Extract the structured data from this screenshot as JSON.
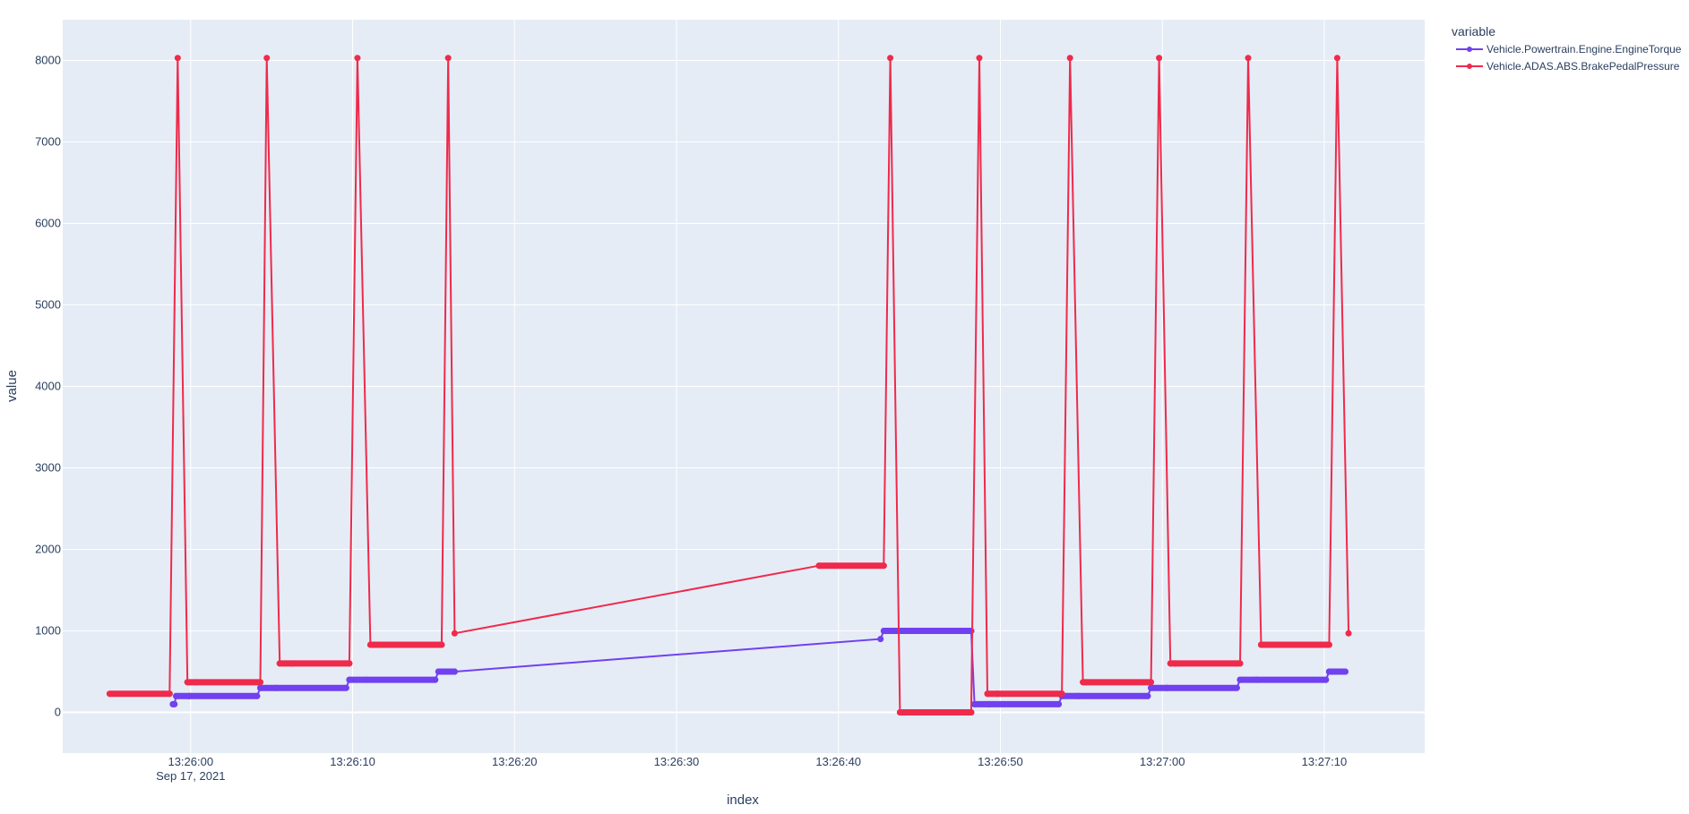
{
  "chart_data": {
    "type": "line",
    "xlabel": "index",
    "ylabel": "value",
    "x_start": "13:25:55",
    "xlim": [
      "13:25:52.1",
      "13:27:16.2"
    ],
    "ylim": [
      -500,
      8500
    ],
    "grid": true,
    "x_ticks": [
      "13:26:00",
      "13:26:10",
      "13:26:20",
      "13:26:30",
      "13:26:40",
      "13:26:50",
      "13:27:00",
      "13:27:10"
    ],
    "x_tick_date": "Sep 17, 2021",
    "y_ticks": [
      "0",
      "1000",
      "2000",
      "3000",
      "4000",
      "5000",
      "6000",
      "7000",
      "8000"
    ],
    "y_tick_values": [
      0,
      1000,
      2000,
      3000,
      4000,
      5000,
      6000,
      7000,
      8000
    ],
    "legend": {
      "title": "variable",
      "position": "top-right"
    },
    "series": [
      {
        "name": "Vehicle.Powertrain.Engine.EngineTorque",
        "color": "#7140f0",
        "x": [
          "13:25:58.9",
          "13:25:59.0",
          "13:25:59.1",
          "13:25:59.9",
          "13:26:04.1",
          "13:26:04.3",
          "13:26:05.3",
          "13:26:09.6",
          "13:26:09.8",
          "13:26:10.8",
          "13:26:15.1",
          "13:26:15.3",
          "13:26:16.3",
          "13:26:42.6",
          "13:26:42.8",
          "13:26:44.0",
          "13:26:48.2",
          "13:26:48.4",
          "13:26:49.3",
          "13:26:53.6",
          "13:26:53.8",
          "13:26:54.8",
          "13:26:59.1",
          "13:26:59.3",
          "13:27:00.3",
          "13:27:04.6",
          "13:27:04.8",
          "13:27:05.8",
          "13:27:10.1",
          "13:27:10.3",
          "13:27:11.3"
        ],
        "y": [
          100,
          100,
          200,
          200,
          200,
          300,
          300,
          300,
          400,
          400,
          400,
          500,
          500,
          900,
          1000,
          1000,
          1000,
          100,
          100,
          100,
          200,
          200,
          200,
          300,
          300,
          300,
          400,
          400,
          400,
          500,
          500
        ]
      },
      {
        "name": "Vehicle.ADAS.ABS.BrakePedalPressure",
        "color": "#ef2a4b",
        "x": [
          "13:25:55.0",
          "13:25:58.7",
          "13:25:59.2",
          "13:25:59.8",
          "13:26:00.3",
          "13:26:04.3",
          "13:26:04.7",
          "13:26:05.5",
          "13:26:06.3",
          "13:26:09.8",
          "13:26:10.3",
          "13:26:11.1",
          "13:26:11.8",
          "13:26:15.5",
          "13:26:15.9",
          "13:26:16.3",
          "13:26:38.8",
          "13:26:42.8",
          "13:26:43.2",
          "13:26:43.8",
          "13:26:44.2",
          "13:26:48.2",
          "13:26:48.7",
          "13:26:49.2",
          "13:26:49.8",
          "13:26:53.8",
          "13:26:54.3",
          "13:26:55.1",
          "13:26:55.3",
          "13:26:59.3",
          "13:26:59.8",
          "13:27:00.5",
          "13:27:00.8",
          "13:27:04.8",
          "13:27:05.3",
          "13:27:06.1",
          "13:27:06.3",
          "13:27:10.3",
          "13:27:10.8",
          "13:27:11.5"
        ],
        "y": [
          228,
          228,
          8030,
          370,
          370,
          370,
          8030,
          600,
          600,
          600,
          8030,
          830,
          830,
          830,
          8030,
          970,
          1800,
          1800,
          8030,
          0,
          0,
          0,
          8030,
          228,
          228,
          228,
          8030,
          370,
          370,
          370,
          8030,
          600,
          600,
          600,
          8030,
          830,
          830,
          830,
          8030,
          970
        ]
      }
    ]
  }
}
